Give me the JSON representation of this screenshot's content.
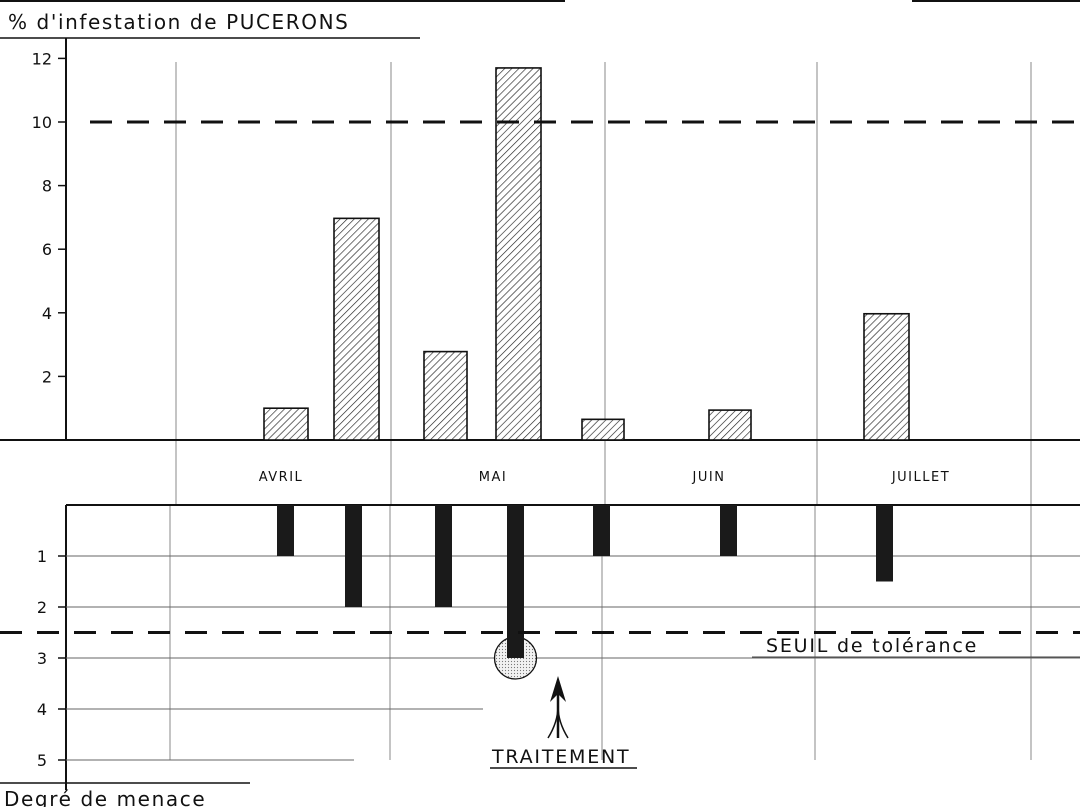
{
  "chart_data": [
    {
      "type": "bar",
      "title": "% d'infestation de PUCERONS",
      "ylim": [
        0,
        12
      ],
      "yticks": [
        2,
        4,
        6,
        8,
        10,
        12
      ],
      "threshold": 10,
      "grid": "vertical",
      "bars": [
        {
          "month": "AVRIL",
          "value": 1.0
        },
        {
          "month": "AVRIL",
          "value": 6.97
        },
        {
          "month": "MAI",
          "value": 2.78
        },
        {
          "month": "MAI",
          "value": 11.7
        },
        {
          "month": "MAI",
          "value": 0.65
        },
        {
          "month": "JUIN",
          "value": 0.94
        },
        {
          "month": "JUILLET",
          "value": 3.97
        }
      ]
    },
    {
      "type": "bar",
      "xlabel": "Degré de menace",
      "ylim": [
        0,
        5
      ],
      "yticks": [
        1,
        2,
        3,
        4,
        5
      ],
      "inverted": true,
      "threshold": 2.5,
      "threshold_label": "SEUIL de tolérance",
      "bars": [
        {
          "month": "AVRIL",
          "value": 1
        },
        {
          "month": "AVRIL",
          "value": 2
        },
        {
          "month": "MAI",
          "value": 2
        },
        {
          "month": "MAI",
          "value": 3,
          "highlight": true
        },
        {
          "month": "MAI",
          "value": 1
        },
        {
          "month": "JUIN",
          "value": 1
        },
        {
          "month": "JUILLET",
          "value": 1.5
        }
      ],
      "annotation": "TRAITEMENT"
    }
  ],
  "months": [
    "AVRIL",
    "MAI",
    "JUIN",
    "JUILLET"
  ]
}
